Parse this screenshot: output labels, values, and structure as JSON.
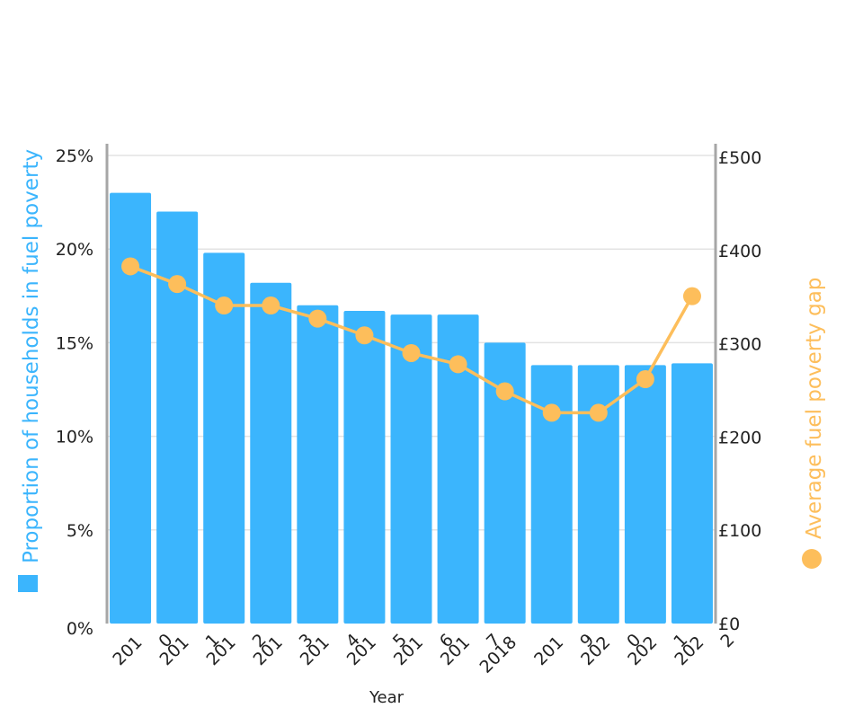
{
  "chart_data": {
    "type": "bar",
    "categories": [
      "2010",
      "2011",
      "2012",
      "2013",
      "2014",
      "2015",
      "2016",
      "2017",
      "2018",
      "2019",
      "2020",
      "2021",
      "2022"
    ],
    "category_labels": [
      [
        "201",
        "0"
      ],
      [
        "201",
        "1"
      ],
      [
        "201",
        "2"
      ],
      [
        "201",
        "3"
      ],
      [
        "201",
        "4"
      ],
      [
        "201",
        "5"
      ],
      [
        "201",
        "6"
      ],
      [
        "201",
        "7"
      ],
      [
        "2018"
      ],
      [
        "201",
        "9"
      ],
      [
        "202",
        "0"
      ],
      [
        "202",
        "1"
      ],
      [
        "202",
        "2"
      ]
    ],
    "xlabel": "Year",
    "series": [
      {
        "name": "Proportion of households in fuel poverty",
        "type": "bar",
        "axis": "left",
        "color": "#3bb5fd",
        "values": [
          23.0,
          22.0,
          19.8,
          18.2,
          17.0,
          16.7,
          16.5,
          16.5,
          15.0,
          13.8,
          13.8,
          13.8,
          13.9
        ]
      },
      {
        "name": "Average fuel poverty gap",
        "type": "line",
        "axis": "right",
        "color": "#fdbe5b",
        "values": [
          383,
          364,
          341,
          341,
          327,
          309,
          290,
          278,
          249,
          226,
          226,
          262,
          351
        ]
      }
    ],
    "y_left": {
      "label": "Proportion of households in fuel poverty",
      "ticks": [
        "0%",
        "5%",
        "10%",
        "15%",
        "20%",
        "25%"
      ],
      "tick_values": [
        0,
        5,
        10,
        15,
        20,
        25
      ],
      "lim": [
        0,
        25.5
      ]
    },
    "y_right": {
      "label": "Average fuel poverty gap",
      "ticks": [
        "£0",
        "£100",
        "£200",
        "£300",
        "£400",
        "£500"
      ],
      "tick_values": [
        0,
        100,
        200,
        300,
        400,
        500
      ],
      "lim": [
        0,
        500
      ]
    },
    "grid": true,
    "legend": "axis-titles"
  }
}
